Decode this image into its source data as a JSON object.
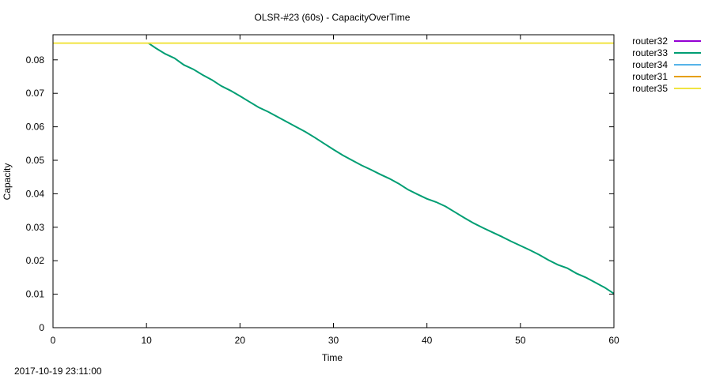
{
  "chart_data": {
    "type": "line",
    "title": "OLSR-#23 (60s) - CapacityOverTime",
    "xlabel": "Time",
    "ylabel": "Capacity",
    "xlim": [
      0,
      60
    ],
    "ylim": [
      0,
      0.0875
    ],
    "xticks": [
      0,
      10,
      20,
      30,
      40,
      50,
      60
    ],
    "yticks": [
      0,
      0.01,
      0.02,
      0.03,
      0.04,
      0.05,
      0.06,
      0.07,
      0.08
    ],
    "ytick_labels": [
      "0",
      "0.01",
      "0.02",
      "0.03",
      "0.04",
      "0.05",
      "0.06",
      "0.07",
      "0.08"
    ],
    "grid": false,
    "legend_position": "outside-right",
    "series": [
      {
        "name": "router32",
        "color": "#9400d3",
        "x": [],
        "y": []
      },
      {
        "name": "router33",
        "color": "#009e73",
        "x": [
          10.2,
          11,
          12,
          13,
          14,
          15,
          16,
          17,
          18,
          19,
          20,
          21,
          22,
          23,
          24,
          25,
          26,
          27,
          28,
          29,
          30,
          31,
          32,
          33,
          34,
          35,
          36,
          37,
          38,
          39,
          40,
          41,
          42,
          43,
          44,
          45,
          46,
          47,
          48,
          49,
          50,
          51,
          52,
          53,
          54,
          55,
          56,
          57,
          58,
          59,
          60
        ],
        "y": [
          0.085,
          0.0835,
          0.0818,
          0.0805,
          0.0785,
          0.0772,
          0.0755,
          0.074,
          0.0722,
          0.0708,
          0.0692,
          0.0675,
          0.0658,
          0.0645,
          0.063,
          0.0615,
          0.06,
          0.0585,
          0.0568,
          0.055,
          0.0532,
          0.0515,
          0.05,
          0.0485,
          0.0472,
          0.0458,
          0.0445,
          0.043,
          0.0412,
          0.0398,
          0.0385,
          0.0375,
          0.0362,
          0.0345,
          0.0328,
          0.0312,
          0.0298,
          0.0285,
          0.0272,
          0.0258,
          0.0245,
          0.0232,
          0.0218,
          0.0202,
          0.0188,
          0.0178,
          0.0162,
          0.015,
          0.0135,
          0.012,
          0.0102
        ]
      },
      {
        "name": "router34",
        "color": "#56b4e9",
        "x": [],
        "y": []
      },
      {
        "name": "router31",
        "color": "#e69f00",
        "x": [],
        "y": []
      },
      {
        "name": "router35",
        "color": "#f0e442",
        "x": [
          0,
          60
        ],
        "y": [
          0.085,
          0.085
        ]
      }
    ]
  },
  "timestamp": "2017-10-19 23:11:00"
}
